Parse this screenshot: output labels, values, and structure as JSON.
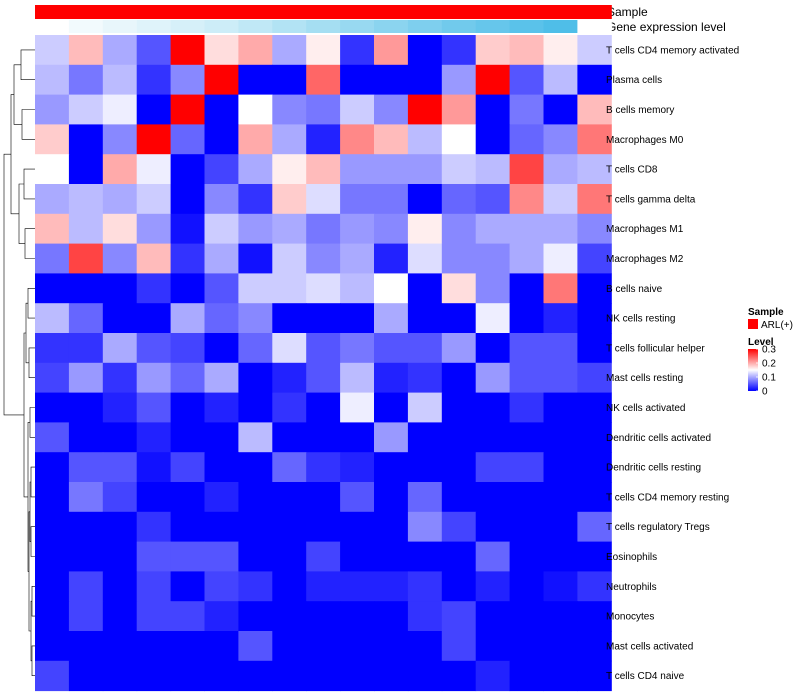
{
  "chart_data": {
    "type": "heatmap",
    "annotations": {
      "sample_label": "Sample",
      "expression_label": "Gene expression level",
      "sample_color": "#ff0000",
      "expression_colors": [
        "#ffffff",
        "#f2fafd",
        "#e8f6fb",
        "#dff3fa",
        "#d6f0f9",
        "#cdedf8",
        "#c0e8f6",
        "#b2e3f4",
        "#a5def2",
        "#98d9f1",
        "#8bd4ef",
        "#7ecfee",
        "#71caec",
        "#66c6eb",
        "#5ac2ea",
        "#4fbee8"
      ]
    },
    "rows": [
      {
        "label": "T cells CD4 memory activated",
        "values": [
          0.12,
          0.19,
          0.1,
          0.05,
          0.3,
          0.17,
          0.2,
          0.1,
          0.16,
          0.03,
          0.21,
          0.0,
          0.03,
          0.18,
          0.19,
          0.16,
          0.12
        ]
      },
      {
        "label": "Plasma cells",
        "values": [
          0.11,
          0.07,
          0.11,
          0.03,
          0.08,
          0.3,
          0.0,
          0.0,
          0.24,
          0.0,
          0.0,
          0.0,
          0.09,
          0.3,
          0.05,
          0.11,
          0.0
        ]
      },
      {
        "label": "B cells memory",
        "values": [
          0.09,
          0.12,
          0.14,
          0.0,
          0.3,
          0.0,
          0.15,
          0.08,
          0.07,
          0.12,
          0.08,
          0.3,
          0.21,
          0.0,
          0.07,
          0.0,
          0.19
        ]
      },
      {
        "label": "Macrophages M0",
        "values": [
          0.18,
          0.0,
          0.08,
          0.3,
          0.06,
          0.0,
          0.2,
          0.1,
          0.02,
          0.22,
          0.19,
          0.11,
          0.15,
          0.0,
          0.06,
          0.08,
          0.23
        ]
      },
      {
        "label": "T cells CD8",
        "values": [
          0.15,
          0.0,
          0.2,
          0.14,
          0.0,
          0.04,
          0.1,
          0.16,
          0.19,
          0.09,
          0.09,
          0.09,
          0.12,
          0.11,
          0.26,
          0.1,
          0.11
        ]
      },
      {
        "label": "T cells gamma delta",
        "values": [
          0.1,
          0.11,
          0.1,
          0.12,
          0.0,
          0.08,
          0.03,
          0.18,
          0.13,
          0.07,
          0.07,
          0.0,
          0.06,
          0.05,
          0.22,
          0.12,
          0.23
        ]
      },
      {
        "label": "Macrophages M1",
        "values": [
          0.19,
          0.11,
          0.17,
          0.09,
          0.01,
          0.12,
          0.09,
          0.1,
          0.07,
          0.09,
          0.08,
          0.16,
          0.08,
          0.1,
          0.1,
          0.1,
          0.08
        ]
      },
      {
        "label": "Macrophages M2",
        "values": [
          0.07,
          0.26,
          0.08,
          0.19,
          0.03,
          0.1,
          0.01,
          0.12,
          0.08,
          0.1,
          0.02,
          0.13,
          0.08,
          0.08,
          0.1,
          0.14,
          0.04
        ]
      },
      {
        "label": "B cells naive",
        "values": [
          0.0,
          0.0,
          0.0,
          0.03,
          0.0,
          0.05,
          0.12,
          0.12,
          0.13,
          0.11,
          0.15,
          0.0,
          0.17,
          0.08,
          0.0,
          0.23,
          0.0
        ]
      },
      {
        "label": "NK cells resting",
        "values": [
          0.11,
          0.06,
          0.0,
          0.0,
          0.1,
          0.06,
          0.08,
          0.0,
          0.0,
          0.0,
          0.1,
          0.0,
          0.0,
          0.14,
          0.0,
          0.02,
          0.0
        ]
      },
      {
        "label": "T cells follicular helper",
        "values": [
          0.03,
          0.03,
          0.1,
          0.05,
          0.04,
          0.0,
          0.06,
          0.13,
          0.05,
          0.07,
          0.05,
          0.05,
          0.09,
          0.0,
          0.05,
          0.05,
          0.0
        ]
      },
      {
        "label": "Mast cells resting",
        "values": [
          0.04,
          0.09,
          0.03,
          0.09,
          0.06,
          0.1,
          0.0,
          0.02,
          0.05,
          0.11,
          0.02,
          0.03,
          0.0,
          0.09,
          0.05,
          0.05,
          0.04
        ]
      },
      {
        "label": "NK cells activated",
        "values": [
          0.0,
          0.0,
          0.02,
          0.05,
          0.0,
          0.02,
          0.0,
          0.03,
          0.0,
          0.14,
          0.0,
          0.12,
          0.0,
          0.0,
          0.03,
          0.0,
          0.0
        ]
      },
      {
        "label": "Dendritic cells activated",
        "values": [
          0.05,
          0.0,
          0.0,
          0.02,
          0.0,
          0.0,
          0.11,
          0.0,
          0.0,
          0.0,
          0.09,
          0.0,
          0.0,
          0.0,
          0.0,
          0.0,
          0.0
        ]
      },
      {
        "label": "Dendritic cells resting",
        "values": [
          0.0,
          0.05,
          0.05,
          0.01,
          0.04,
          0.0,
          0.0,
          0.06,
          0.03,
          0.02,
          0.0,
          0.0,
          0.0,
          0.04,
          0.04,
          0.0,
          0.0
        ]
      },
      {
        "label": "T cells CD4 memory resting",
        "values": [
          0.0,
          0.07,
          0.04,
          0.0,
          0.0,
          0.02,
          0.0,
          0.0,
          0.0,
          0.05,
          0.0,
          0.06,
          0.0,
          0.0,
          0.0,
          0.0,
          0.0
        ]
      },
      {
        "label": "T cells regulatory  Tregs",
        "values": [
          0.0,
          0.0,
          0.0,
          0.03,
          0.0,
          0.0,
          0.0,
          0.0,
          0.0,
          0.0,
          0.0,
          0.08,
          0.04,
          0.0,
          0.0,
          0.0,
          0.06
        ]
      },
      {
        "label": "Eosinophils",
        "values": [
          0.0,
          0.0,
          0.0,
          0.05,
          0.05,
          0.05,
          0.0,
          0.0,
          0.04,
          0.0,
          0.0,
          0.0,
          0.0,
          0.06,
          0.0,
          0.0,
          0.0
        ]
      },
      {
        "label": "Neutrophils",
        "values": [
          0.0,
          0.04,
          0.0,
          0.04,
          0.0,
          0.04,
          0.03,
          0.0,
          0.02,
          0.02,
          0.02,
          0.03,
          0.0,
          0.02,
          0.0,
          0.01,
          0.03
        ]
      },
      {
        "label": "Monocytes",
        "values": [
          0.0,
          0.04,
          0.0,
          0.04,
          0.04,
          0.02,
          0.0,
          0.0,
          0.0,
          0.0,
          0.0,
          0.03,
          0.04,
          0.0,
          0.0,
          0.0,
          0.0
        ]
      },
      {
        "label": "Mast cells activated",
        "values": [
          0.0,
          0.0,
          0.0,
          0.0,
          0.0,
          0.0,
          0.05,
          0.0,
          0.0,
          0.0,
          0.0,
          0.0,
          0.04,
          0.0,
          0.0,
          0.0,
          0.0
        ]
      },
      {
        "label": "T cells CD4 naive",
        "values": [
          0.04,
          0.0,
          0.0,
          0.0,
          0.0,
          0.0,
          0.0,
          0.0,
          0.0,
          0.0,
          0.0,
          0.0,
          0.0,
          0.02,
          0.0,
          0.0,
          0.0
        ]
      }
    ],
    "color_scale": {
      "min": 0,
      "max": 0.3,
      "low": "#0000ff",
      "mid": "#ffffff",
      "high": "#ff0000",
      "mid_value": 0.15
    },
    "legend": {
      "sample_title": "Sample",
      "sample_entry": "ARL(+)",
      "level_title": "Level",
      "level_ticks": [
        "0.3",
        "0.2",
        "0.1",
        "0"
      ]
    }
  }
}
